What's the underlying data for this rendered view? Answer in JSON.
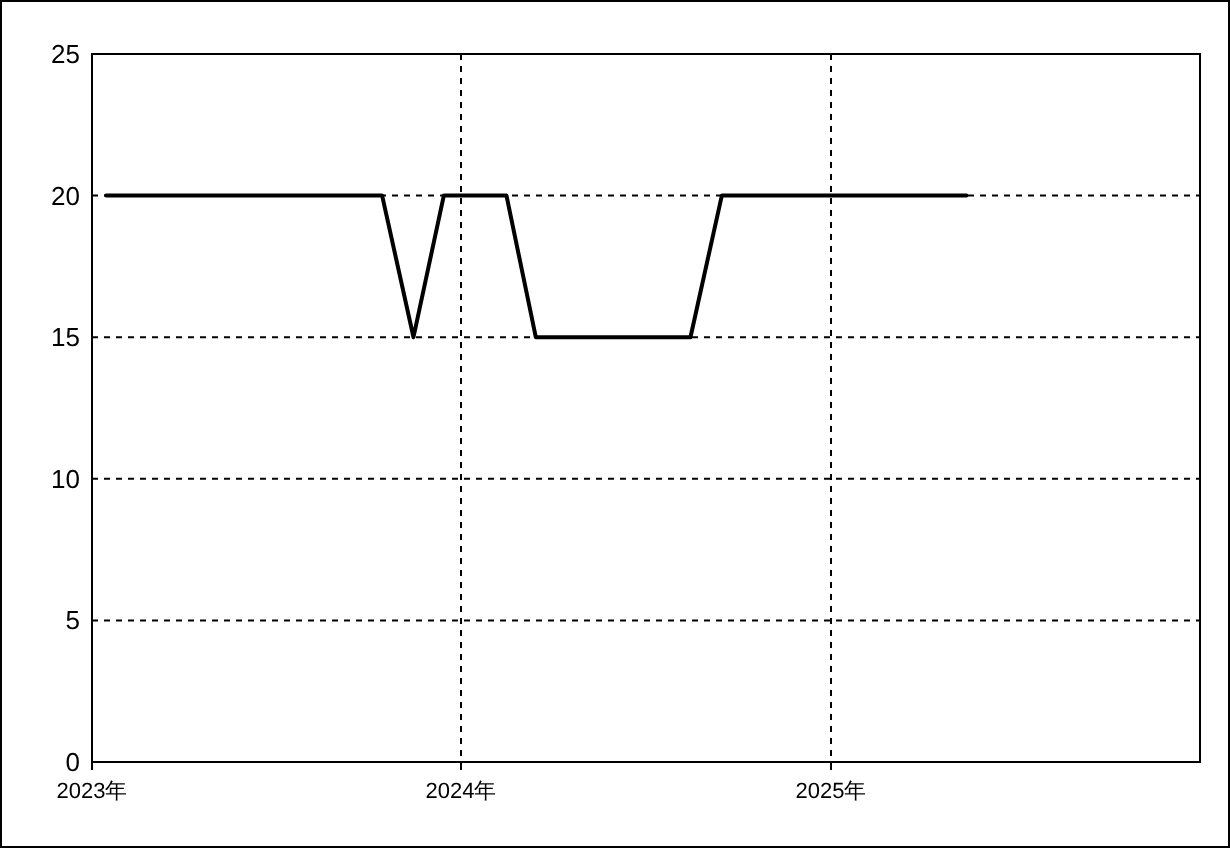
{
  "chart_data": {
    "type": "line",
    "x": [
      "2023-01-15",
      "2023-02-15",
      "2023-03-15",
      "2023-04-15",
      "2023-05-15",
      "2023-06-15",
      "2023-07-15",
      "2023-08-15",
      "2023-09-15",
      "2023-10-15",
      "2023-11-15",
      "2023-12-15",
      "2024-01-15",
      "2024-02-15",
      "2024-03-15",
      "2024-04-15",
      "2024-05-15",
      "2024-06-15",
      "2024-07-15",
      "2024-08-15",
      "2024-09-15",
      "2024-10-15",
      "2024-11-15",
      "2024-12-15",
      "2025-01-15",
      "2025-02-15",
      "2025-03-15",
      "2025-04-15",
      "2025-05-15"
    ],
    "series": [
      {
        "color": "#000000",
        "values": [
          20,
          20,
          20,
          20,
          20,
          20,
          20,
          20,
          20,
          20,
          15,
          20,
          20,
          20,
          15,
          15,
          15,
          15,
          15,
          15,
          20,
          20,
          20,
          20,
          20,
          20,
          20,
          20,
          20
        ]
      }
    ],
    "xlim": [
      "2023-01-01",
      "2026-01-01"
    ],
    "xticks": [
      {
        "value": "2023-01-01",
        "label": "2023年"
      },
      {
        "value": "2024-01-01",
        "label": "2024年"
      },
      {
        "value": "2025-01-01",
        "label": "2025年"
      }
    ],
    "ylim": [
      0,
      25
    ],
    "yticks": [
      0,
      5,
      10,
      15,
      20,
      25
    ],
    "grid": true,
    "marker": "none",
    "line_style": "solid"
  }
}
